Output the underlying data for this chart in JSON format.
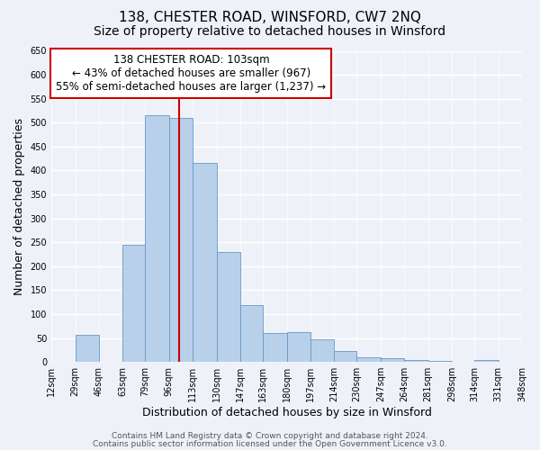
{
  "title": "138, CHESTER ROAD, WINSFORD, CW7 2NQ",
  "subtitle": "Size of property relative to detached houses in Winsford",
  "xlabel": "Distribution of detached houses by size in Winsford",
  "ylabel": "Number of detached properties",
  "bin_edges": [
    12,
    29,
    46,
    63,
    79,
    96,
    113,
    130,
    147,
    163,
    180,
    197,
    214,
    230,
    247,
    264,
    281,
    298,
    314,
    331,
    348
  ],
  "bar_heights": [
    0,
    57,
    0,
    245,
    515,
    510,
    415,
    230,
    118,
    60,
    62,
    47,
    23,
    10,
    8,
    5,
    2,
    0,
    5,
    0
  ],
  "bar_color": "#b8d0ea",
  "bar_edge_color": "#6699cc",
  "property_line_x": 103,
  "property_line_color": "#cc0000",
  "annotation_text": "138 CHESTER ROAD: 103sqm\n← 43% of detached houses are smaller (967)\n55% of semi-detached houses are larger (1,237) →",
  "annotation_box_color": "#ffffff",
  "annotation_box_edge": "#cc0000",
  "ylim": [
    0,
    650
  ],
  "yticks": [
    0,
    50,
    100,
    150,
    200,
    250,
    300,
    350,
    400,
    450,
    500,
    550,
    600,
    650
  ],
  "xtick_labels": [
    "12sqm",
    "29sqm",
    "46sqm",
    "63sqm",
    "79sqm",
    "96sqm",
    "113sqm",
    "130sqm",
    "147sqm",
    "163sqm",
    "180sqm",
    "197sqm",
    "214sqm",
    "230sqm",
    "247sqm",
    "264sqm",
    "281sqm",
    "298sqm",
    "314sqm",
    "331sqm",
    "348sqm"
  ],
  "footer_line1": "Contains HM Land Registry data © Crown copyright and database right 2024.",
  "footer_line2": "Contains public sector information licensed under the Open Government Licence v3.0.",
  "background_color": "#eef2f8",
  "grid_color": "#ffffff",
  "title_fontsize": 11,
  "subtitle_fontsize": 10,
  "axis_label_fontsize": 9,
  "tick_fontsize": 7,
  "footer_fontsize": 6.5,
  "annotation_fontsize": 8.5
}
